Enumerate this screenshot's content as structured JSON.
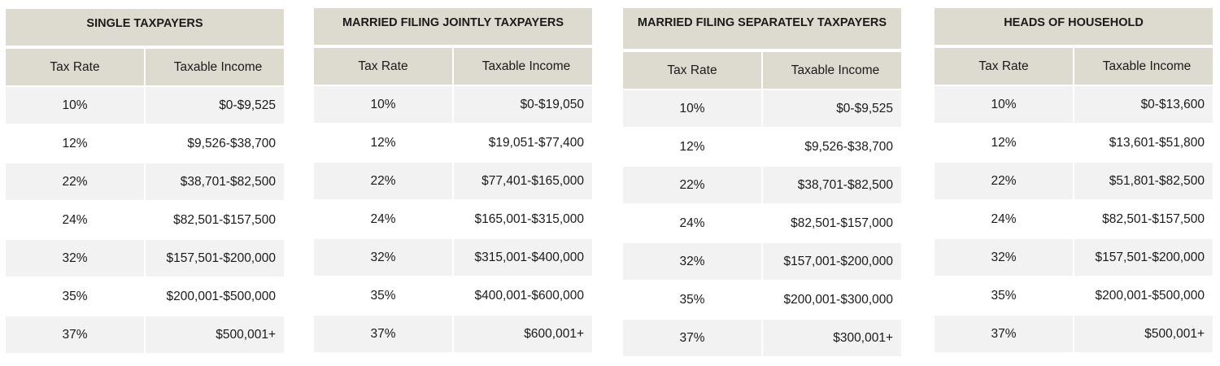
{
  "columns": {
    "rate": "Tax Rate",
    "income": "Taxable Income"
  },
  "panels": [
    {
      "title": "SINGLE TAXPAYERS",
      "rows": [
        {
          "rate": "10%",
          "income": "$0-$9,525"
        },
        {
          "rate": "12%",
          "income": "$9,526-$38,700"
        },
        {
          "rate": "22%",
          "income": "$38,701-$82,500"
        },
        {
          "rate": "24%",
          "income": "$82,501-$157,500"
        },
        {
          "rate": "32%",
          "income": "$157,501-$200,000"
        },
        {
          "rate": "35%",
          "income": "$200,001-$500,000"
        },
        {
          "rate": "37%",
          "income": "$500,001+"
        }
      ]
    },
    {
      "title": "MARRIED FILING JOINTLY TAXPAYERS",
      "rows": [
        {
          "rate": "10%",
          "income": "$0-$19,050"
        },
        {
          "rate": "12%",
          "income": "$19,051-$77,400"
        },
        {
          "rate": "22%",
          "income": "$77,401-$165,000"
        },
        {
          "rate": "24%",
          "income": "$165,001-$315,000"
        },
        {
          "rate": "32%",
          "income": "$315,001-$400,000"
        },
        {
          "rate": "35%",
          "income": "$400,001-$600,000"
        },
        {
          "rate": "37%",
          "income": "$600,001+"
        }
      ]
    },
    {
      "title": "MARRIED FILING SEPARATELY TAXPAYERS",
      "rows": [
        {
          "rate": "10%",
          "income": "$0-$9,525"
        },
        {
          "rate": "12%",
          "income": "$9,526-$38,700"
        },
        {
          "rate": "22%",
          "income": "$38,701-$82,500"
        },
        {
          "rate": "24%",
          "income": "$82,501-$157,000"
        },
        {
          "rate": "32%",
          "income": "$157,001-$200,000"
        },
        {
          "rate": "35%",
          "income": "$200,001-$300,000"
        },
        {
          "rate": "37%",
          "income": "$300,001+"
        }
      ]
    },
    {
      "title": "HEADS OF HOUSEHOLD",
      "rows": [
        {
          "rate": "10%",
          "income": "$0-$13,600"
        },
        {
          "rate": "12%",
          "income": "$13,601-$51,800"
        },
        {
          "rate": "22%",
          "income": "$51,801-$82,500"
        },
        {
          "rate": "24%",
          "income": "$82,501-$157,500"
        },
        {
          "rate": "32%",
          "income": "$157,501-$200,000"
        },
        {
          "rate": "35%",
          "income": "$200,001-$500,000"
        },
        {
          "rate": "37%",
          "income": "$500,001+"
        }
      ]
    }
  ]
}
